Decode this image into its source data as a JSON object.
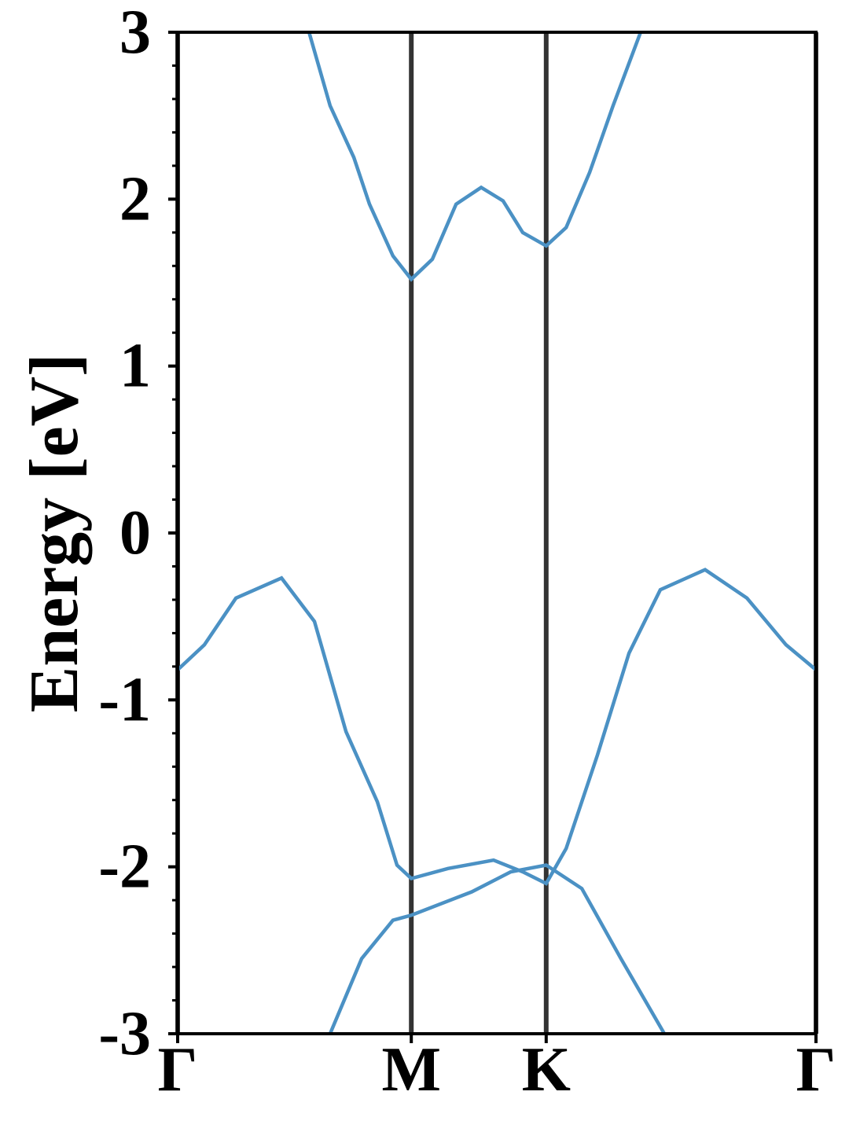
{
  "chart_data": {
    "type": "line",
    "ylabel": "Energy [eV]",
    "xlim": [
      0,
      2.366
    ],
    "ylim": [
      -3,
      3
    ],
    "xticks": [
      {
        "value": 0,
        "label": "Γ"
      },
      {
        "value": 0.866,
        "label": "M"
      },
      {
        "value": 1.366,
        "label": "K"
      },
      {
        "value": 2.366,
        "label": "Γ"
      }
    ],
    "yticks": [
      -3,
      -2,
      -1,
      0,
      1,
      2,
      3
    ],
    "yminorticks": [
      -2.8,
      -2.6,
      -2.4,
      -2.2,
      -1.8,
      -1.6,
      -1.4,
      -1.2,
      -0.8,
      -0.6,
      -0.4,
      -0.2,
      0.2,
      0.4,
      0.6,
      0.8,
      1.2,
      1.4,
      1.6,
      1.8,
      2.2,
      2.4,
      2.6,
      2.8
    ],
    "xgrid": true,
    "grid_color": "#333333",
    "series": [
      {
        "color": "#4b91c4",
        "x": [
          0.487,
          0.565,
          0.653,
          0.711,
          0.798,
          0.866,
          0.944,
          1.032,
          1.125,
          1.206,
          1.279,
          1.366,
          1.44,
          1.527,
          1.614,
          1.716
        ],
        "values": [
          3,
          2.56,
          2.25,
          1.97,
          1.66,
          1.52,
          1.64,
          1.97,
          2.07,
          1.99,
          1.8,
          1.72,
          1.83,
          2.16,
          2.56,
          3
        ]
      },
      {
        "color": "#4b91c4",
        "x": [
          0,
          0.099,
          0.216,
          0.385,
          0.507,
          0.624,
          0.74,
          0.813,
          0.866,
          1.002,
          1.171,
          1.279,
          1.366,
          1.44,
          1.556,
          1.673,
          1.789,
          1.955,
          2.11,
          2.255,
          2.366
        ],
        "values": [
          -0.82,
          -0.67,
          -0.39,
          -0.27,
          -0.53,
          -1.19,
          -1.61,
          -1.99,
          -2.07,
          -2.01,
          -1.96,
          -2.03,
          -2.1,
          -1.89,
          -1.33,
          -0.72,
          -0.34,
          -0.22,
          -0.39,
          -0.67,
          -0.82
        ]
      },
      {
        "color": "#4b91c4",
        "x": [
          0.565,
          0.682,
          0.798,
          0.866,
          1.09,
          1.235,
          1.366,
          1.498,
          1.643,
          1.804
        ],
        "values": [
          -3,
          -2.55,
          -2.32,
          -2.29,
          -2.15,
          -2.03,
          -1.99,
          -2.13,
          -2.55,
          -3
        ]
      }
    ]
  }
}
